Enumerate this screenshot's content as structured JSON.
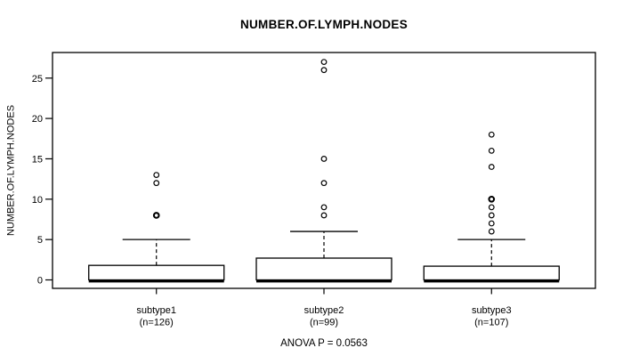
{
  "chart_data": {
    "type": "boxplot",
    "title": "NUMBER.OF.LYMPH.NODES",
    "ylabel": "NUMBER.OF.LYMPH.NODES",
    "annotation": "ANOVA P = 0.0563",
    "yticks": [
      0,
      5,
      10,
      15,
      20,
      25
    ],
    "ylim": [
      -1,
      28.2
    ],
    "grid": false,
    "colors": {
      "line": "#000000",
      "box_fill": "#ffffff",
      "background": "#ffffff"
    },
    "groups": [
      {
        "label": "subtype1",
        "sublabel": "(n=126)",
        "n": 126,
        "q1": 0,
        "median": 0,
        "q3": 1.8,
        "whisker_low": 0,
        "whisker_high": 5,
        "outliers": [
          8,
          8,
          12,
          13
        ]
      },
      {
        "label": "subtype2",
        "sublabel": "(n=99)",
        "n": 99,
        "q1": 0,
        "median": 0,
        "q3": 2.7,
        "whisker_low": 0,
        "whisker_high": 6,
        "outliers": [
          8,
          9,
          12,
          15,
          26,
          27
        ]
      },
      {
        "label": "subtype3",
        "sublabel": "(n=107)",
        "n": 107,
        "q1": 0,
        "median": 0,
        "q3": 1.7,
        "whisker_low": 0,
        "whisker_high": 5,
        "outliers": [
          6,
          7,
          8,
          9,
          10,
          10,
          14,
          16,
          18
        ]
      }
    ]
  }
}
